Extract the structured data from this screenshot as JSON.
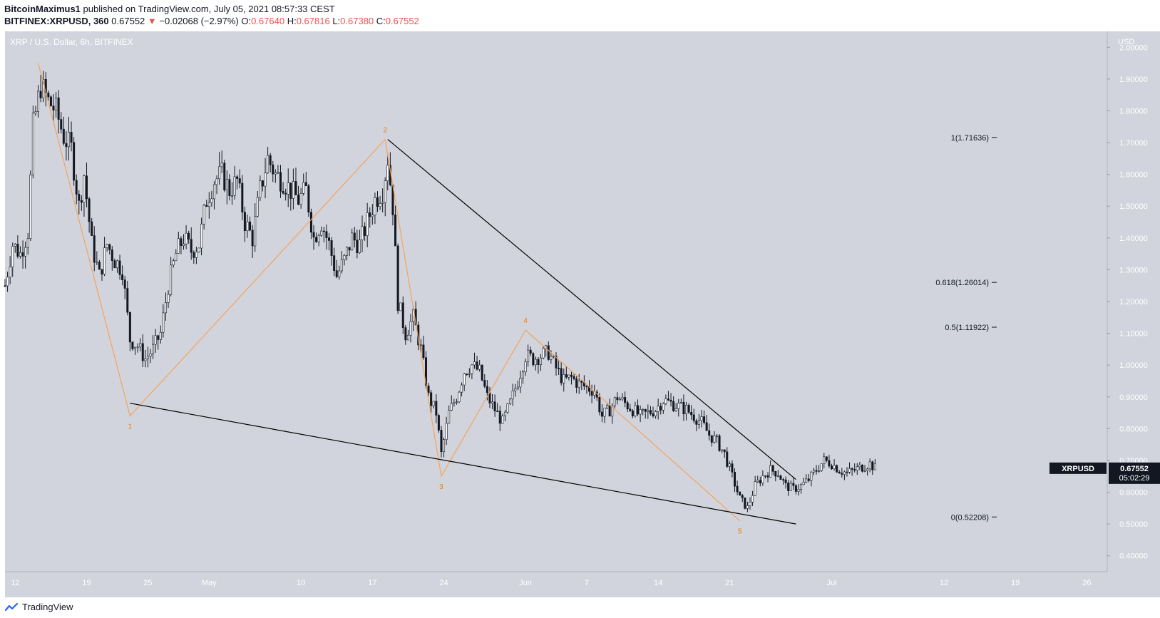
{
  "header": {
    "author": "BitcoinMaximus1",
    "published_text": "published on TradingView.com, July 05, 2021 08:57:33 CEST",
    "symbol": "BITFINEX:XRPUSD, 360",
    "last": "0.67552",
    "change_arrow": "▼",
    "change": "−0.02068 (−2.97%)",
    "ohlc": [
      {
        "label": "O:",
        "value": "0.67640"
      },
      {
        "label": "H:",
        "value": "0.67816"
      },
      {
        "label": "L:",
        "value": "0.67380"
      },
      {
        "label": "C:",
        "value": "0.67552"
      }
    ]
  },
  "footer": {
    "brand": "TradingView",
    "logo_icon": "tradingview-logo-icon"
  },
  "colors": {
    "plot_bg": "#d1d4dc",
    "candle": "#131722",
    "wave": "#f7a35c",
    "wave_label": "#f57c00",
    "trendline": "#000000",
    "down": "#ef5350"
  },
  "chart_data": {
    "type": "candlestick",
    "title": "XRP / U.S. Dollar, 6h, BITFINEX",
    "y_unit": "USD",
    "ylim": [
      0.35,
      2.05
    ],
    "xlim": [
      "2021-04-11",
      "2021-07-28"
    ],
    "x_ticks": [
      {
        "label": "12",
        "date": "2021-04-12"
      },
      {
        "label": "19",
        "date": "2021-04-19"
      },
      {
        "label": "25",
        "date": "2021-04-25"
      },
      {
        "label": "May",
        "date": "2021-05-01"
      },
      {
        "label": "10",
        "date": "2021-05-10"
      },
      {
        "label": "17",
        "date": "2021-05-17"
      },
      {
        "label": "24",
        "date": "2021-05-24"
      },
      {
        "label": "Jun",
        "date": "2021-06-01"
      },
      {
        "label": "7",
        "date": "2021-06-07"
      },
      {
        "label": "14",
        "date": "2021-06-14"
      },
      {
        "label": "21",
        "date": "2021-06-21"
      },
      {
        "label": "Jul",
        "date": "2021-07-01"
      },
      {
        "label": "12",
        "date": "2021-07-12"
      },
      {
        "label": "19",
        "date": "2021-07-19"
      },
      {
        "label": "26",
        "date": "2021-07-26"
      }
    ],
    "y_ticks": [
      "2.00000",
      "1.90000",
      "1.80000",
      "1.70000",
      "1.60000",
      "1.50000",
      "1.40000",
      "1.30000",
      "1.20000",
      "1.10000",
      "1.00000",
      "0.90000",
      "0.80000",
      "0.70000",
      "0.60000",
      "0.50000",
      "0.40000"
    ],
    "price_path": [
      {
        "date": "2021-04-11T00:00",
        "price": 1.25
      },
      {
        "date": "2021-04-11T18:00",
        "price": 1.38
      },
      {
        "date": "2021-04-12T12:00",
        "price": 1.35
      },
      {
        "date": "2021-04-13T06:00",
        "price": 1.42
      },
      {
        "date": "2021-04-13T18:00",
        "price": 1.75
      },
      {
        "date": "2021-04-14T12:00",
        "price": 1.88
      },
      {
        "date": "2021-04-15T06:00",
        "price": 1.83
      },
      {
        "date": "2021-04-16T00:00",
        "price": 1.8
      },
      {
        "date": "2021-04-16T18:00",
        "price": 1.72
      },
      {
        "date": "2021-04-17T12:00",
        "price": 1.68
      },
      {
        "date": "2021-04-18T06:00",
        "price": 1.5
      },
      {
        "date": "2021-04-18T18:00",
        "price": 1.6
      },
      {
        "date": "2021-04-19T12:00",
        "price": 1.38
      },
      {
        "date": "2021-04-20T06:00",
        "price": 1.28
      },
      {
        "date": "2021-04-21T00:00",
        "price": 1.38
      },
      {
        "date": "2021-04-21T18:00",
        "price": 1.33
      },
      {
        "date": "2021-04-22T12:00",
        "price": 1.3
      },
      {
        "date": "2021-04-23T06:00",
        "price": 1.08
      },
      {
        "date": "2021-04-24T00:00",
        "price": 1.06
      },
      {
        "date": "2021-04-24T18:00",
        "price": 1.02
      },
      {
        "date": "2021-04-25T12:00",
        "price": 1.05
      },
      {
        "date": "2021-04-26T06:00",
        "price": 1.1
      },
      {
        "date": "2021-04-27T00:00",
        "price": 1.25
      },
      {
        "date": "2021-04-27T18:00",
        "price": 1.35
      },
      {
        "date": "2021-04-28T12:00",
        "price": 1.4
      },
      {
        "date": "2021-04-29T06:00",
        "price": 1.36
      },
      {
        "date": "2021-04-30T00:00",
        "price": 1.38
      },
      {
        "date": "2021-04-30T18:00",
        "price": 1.52
      },
      {
        "date": "2021-05-01T12:00",
        "price": 1.58
      },
      {
        "date": "2021-05-02T06:00",
        "price": 1.6
      },
      {
        "date": "2021-05-03T00:00",
        "price": 1.55
      },
      {
        "date": "2021-05-03T18:00",
        "price": 1.58
      },
      {
        "date": "2021-05-04T12:00",
        "price": 1.45
      },
      {
        "date": "2021-05-05T06:00",
        "price": 1.4
      },
      {
        "date": "2021-05-06T00:00",
        "price": 1.55
      },
      {
        "date": "2021-05-06T18:00",
        "price": 1.65
      },
      {
        "date": "2021-05-07T12:00",
        "price": 1.6
      },
      {
        "date": "2021-05-08T06:00",
        "price": 1.58
      },
      {
        "date": "2021-05-09T00:00",
        "price": 1.55
      },
      {
        "date": "2021-05-09T18:00",
        "price": 1.52
      },
      {
        "date": "2021-05-10T12:00",
        "price": 1.55
      },
      {
        "date": "2021-05-11T06:00",
        "price": 1.4
      },
      {
        "date": "2021-05-12T00:00",
        "price": 1.45
      },
      {
        "date": "2021-05-12T18:00",
        "price": 1.38
      },
      {
        "date": "2021-05-13T12:00",
        "price": 1.28
      },
      {
        "date": "2021-05-14T06:00",
        "price": 1.33
      },
      {
        "date": "2021-05-15T00:00",
        "price": 1.4
      },
      {
        "date": "2021-05-15T18:00",
        "price": 1.38
      },
      {
        "date": "2021-05-16T12:00",
        "price": 1.45
      },
      {
        "date": "2021-05-17T06:00",
        "price": 1.52
      },
      {
        "date": "2021-05-18T00:00",
        "price": 1.55
      },
      {
        "date": "2021-05-18T12:00",
        "price": 1.65
      },
      {
        "date": "2021-05-19T00:00",
        "price": 1.5
      },
      {
        "date": "2021-05-19T12:00",
        "price": 1.2
      },
      {
        "date": "2021-05-20T06:00",
        "price": 1.1
      },
      {
        "date": "2021-05-21T00:00",
        "price": 1.15
      },
      {
        "date": "2021-05-21T18:00",
        "price": 1.05
      },
      {
        "date": "2021-05-22T12:00",
        "price": 0.9
      },
      {
        "date": "2021-05-23T06:00",
        "price": 0.85
      },
      {
        "date": "2021-05-23T18:00",
        "price": 0.72
      },
      {
        "date": "2021-05-24T12:00",
        "price": 0.85
      },
      {
        "date": "2021-05-25T06:00",
        "price": 0.9
      },
      {
        "date": "2021-05-26T00:00",
        "price": 0.98
      },
      {
        "date": "2021-05-26T18:00",
        "price": 1.0
      },
      {
        "date": "2021-05-27T12:00",
        "price": 0.98
      },
      {
        "date": "2021-05-28T06:00",
        "price": 0.9
      },
      {
        "date": "2021-05-29T00:00",
        "price": 0.86
      },
      {
        "date": "2021-05-29T18:00",
        "price": 0.82
      },
      {
        "date": "2021-05-30T12:00",
        "price": 0.88
      },
      {
        "date": "2021-05-31T06:00",
        "price": 0.95
      },
      {
        "date": "2021-06-01T00:00",
        "price": 1.03
      },
      {
        "date": "2021-06-01T18:00",
        "price": 1.02
      },
      {
        "date": "2021-06-02T12:00",
        "price": 1.03
      },
      {
        "date": "2021-06-03T06:00",
        "price": 1.04
      },
      {
        "date": "2021-06-04T00:00",
        "price": 0.99
      },
      {
        "date": "2021-06-04T18:00",
        "price": 0.95
      },
      {
        "date": "2021-06-05T12:00",
        "price": 0.96
      },
      {
        "date": "2021-06-06T06:00",
        "price": 0.94
      },
      {
        "date": "2021-06-07T00:00",
        "price": 0.93
      },
      {
        "date": "2021-06-07T18:00",
        "price": 0.92
      },
      {
        "date": "2021-06-08T12:00",
        "price": 0.84
      },
      {
        "date": "2021-06-09T06:00",
        "price": 0.86
      },
      {
        "date": "2021-06-10T00:00",
        "price": 0.9
      },
      {
        "date": "2021-06-10T18:00",
        "price": 0.88
      },
      {
        "date": "2021-06-11T12:00",
        "price": 0.86
      },
      {
        "date": "2021-06-12T06:00",
        "price": 0.84
      },
      {
        "date": "2021-06-13T00:00",
        "price": 0.85
      },
      {
        "date": "2021-06-13T18:00",
        "price": 0.86
      },
      {
        "date": "2021-06-14T12:00",
        "price": 0.89
      },
      {
        "date": "2021-06-15T06:00",
        "price": 0.88
      },
      {
        "date": "2021-06-16T00:00",
        "price": 0.87
      },
      {
        "date": "2021-06-16T18:00",
        "price": 0.86
      },
      {
        "date": "2021-06-17T12:00",
        "price": 0.84
      },
      {
        "date": "2021-06-18T06:00",
        "price": 0.82
      },
      {
        "date": "2021-06-19T00:00",
        "price": 0.78
      },
      {
        "date": "2021-06-19T18:00",
        "price": 0.76
      },
      {
        "date": "2021-06-20T12:00",
        "price": 0.72
      },
      {
        "date": "2021-06-21T06:00",
        "price": 0.65
      },
      {
        "date": "2021-06-22T00:00",
        "price": 0.58
      },
      {
        "date": "2021-06-22T18:00",
        "price": 0.55
      },
      {
        "date": "2021-06-23T12:00",
        "price": 0.62
      },
      {
        "date": "2021-06-24T06:00",
        "price": 0.65
      },
      {
        "date": "2021-06-25T00:00",
        "price": 0.67
      },
      {
        "date": "2021-06-25T18:00",
        "price": 0.66
      },
      {
        "date": "2021-06-26T12:00",
        "price": 0.62
      },
      {
        "date": "2021-06-27T06:00",
        "price": 0.61
      },
      {
        "date": "2021-06-28T00:00",
        "price": 0.62
      },
      {
        "date": "2021-06-28T18:00",
        "price": 0.64
      },
      {
        "date": "2021-06-29T12:00",
        "price": 0.67
      },
      {
        "date": "2021-06-30T06:00",
        "price": 0.7
      },
      {
        "date": "2021-07-01T00:00",
        "price": 0.69
      },
      {
        "date": "2021-07-01T18:00",
        "price": 0.67
      },
      {
        "date": "2021-07-02T12:00",
        "price": 0.66
      },
      {
        "date": "2021-07-03T06:00",
        "price": 0.67
      },
      {
        "date": "2021-07-04T00:00",
        "price": 0.68
      },
      {
        "date": "2021-07-04T18:00",
        "price": 0.69
      },
      {
        "date": "2021-07-05T06:00",
        "price": 0.676
      }
    ],
    "wave_count": [
      {
        "label": "",
        "date": "2021-04-14T06:00",
        "price": 1.95
      },
      {
        "label": "1",
        "date": "2021-04-23T06:00",
        "price": 0.84
      },
      {
        "label": "2",
        "date": "2021-05-18T06:00",
        "price": 1.71
      },
      {
        "label": "3",
        "date": "2021-05-23T18:00",
        "price": 0.65
      },
      {
        "label": "4",
        "date": "2021-06-01T00:00",
        "price": 1.11
      },
      {
        "label": "5",
        "date": "2021-06-22T00:00",
        "price": 0.51
      }
    ],
    "trendlines": [
      {
        "name": "resistance",
        "start": {
          "date": "2021-05-18T12:00",
          "price": 1.71
        },
        "end": {
          "date": "2021-06-27T12:00",
          "price": 0.64
        }
      },
      {
        "name": "support",
        "start": {
          "date": "2021-04-23T06:00",
          "price": 0.88
        },
        "end": {
          "date": "2021-06-27T12:00",
          "price": 0.5
        }
      }
    ],
    "fib_levels": [
      {
        "label": "1(1.71636)",
        "price": 1.71636
      },
      {
        "label": "0.618(1.26014)",
        "price": 1.26014
      },
      {
        "label": "0.5(1.11922)",
        "price": 1.11922
      },
      {
        "label": "0(0.52208)",
        "price": 0.52208
      }
    ],
    "last_price": {
      "symbol": "XRPUSD",
      "value": "0.67552",
      "countdown": "05:02:29",
      "price": 0.67552
    }
  }
}
